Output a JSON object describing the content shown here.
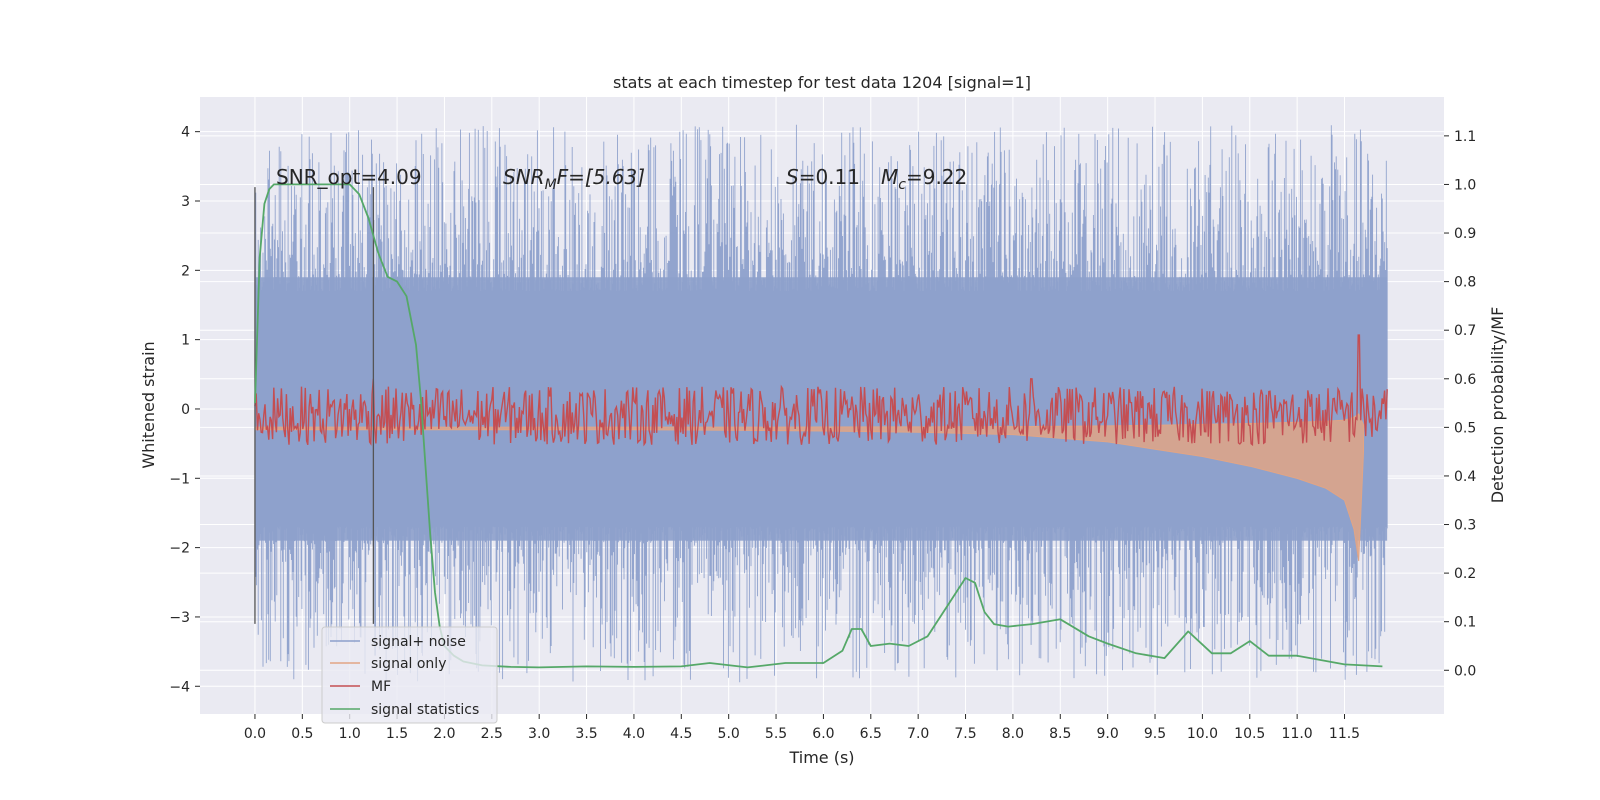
{
  "chart_data": {
    "type": "line",
    "title": "stats at each timestep for test data 1204 [signal=1]",
    "xlabel": "Time (s)",
    "ylabel": "Whitened strain",
    "y2label": "Detection probability/MF",
    "xlim": [
      -0.58,
      12.55
    ],
    "ylim": [
      -4.4,
      4.5
    ],
    "y2lim": [
      -0.09,
      1.18
    ],
    "xticks": [
      0.0,
      0.5,
      1.0,
      1.5,
      2.0,
      2.5,
      3.0,
      3.5,
      4.0,
      4.5,
      5.0,
      5.5,
      6.0,
      6.5,
      7.0,
      7.5,
      8.0,
      8.5,
      9.0,
      9.5,
      10.0,
      10.5,
      11.0,
      11.5
    ],
    "xtick_labels": [
      "0.0",
      "0.5",
      "1.0",
      "1.5",
      "2.0",
      "2.5",
      "3.0",
      "3.5",
      "4.0",
      "4.5",
      "5.0",
      "5.5",
      "6.0",
      "6.5",
      "7.0",
      "7.5",
      "8.0",
      "8.5",
      "9.0",
      "9.5",
      "10.0",
      "10.5",
      "11.0",
      "11.5"
    ],
    "yticks": [
      -4,
      -3,
      -2,
      -1,
      0,
      1,
      2,
      3,
      4
    ],
    "ytick_labels": [
      "−4",
      "−3",
      "−2",
      "−1",
      "0",
      "1",
      "2",
      "3",
      "4"
    ],
    "y2ticks": [
      0.0,
      0.1,
      0.2,
      0.3,
      0.4,
      0.5,
      0.6,
      0.7,
      0.8,
      0.9,
      1.0,
      1.1
    ],
    "y2tick_labels": [
      "0.0",
      "0.1",
      "0.2",
      "0.3",
      "0.4",
      "0.5",
      "0.6",
      "0.7",
      "0.8",
      "0.9",
      "1.0",
      "1.1"
    ],
    "grid": true,
    "legend_position": "lower-left",
    "annotations": {
      "snr_opt": "SNR_opt=4.09",
      "snr_mf_prefix": "SNR",
      "snr_mf_sub": "M",
      "snr_mf_rest": "F=[5.63]",
      "s_var": "S",
      "s_rest": "=0.11",
      "mc_var": "M",
      "mc_sub": "c",
      "mc_rest": "=9.22"
    },
    "vertical_lines_x": [
      0.0,
      1.25
    ],
    "noise_band": {
      "x_start": 0.0,
      "x_end": 11.95,
      "typical_amplitude": 1.9,
      "max_spike_y": 4.1,
      "min_spike_y": -3.95
    },
    "signal_only": {
      "x": [
        0.0,
        1.0,
        2.0,
        3.0,
        4.0,
        5.0,
        6.0,
        7.0,
        8.0,
        9.0,
        9.5,
        10.0,
        10.5,
        11.0,
        11.3,
        11.5,
        11.6,
        11.65,
        11.7
      ],
      "amplitude": [
        0.01,
        0.01,
        0.01,
        0.01,
        0.01,
        0.012,
        0.015,
        0.02,
        0.03,
        0.06,
        0.09,
        0.12,
        0.16,
        0.21,
        0.25,
        0.3,
        0.42,
        0.55,
        0.1
      ]
    },
    "mf": {
      "baseline": 0.53,
      "fluctuation": 0.06,
      "peaks": [
        {
          "x": 1.25,
          "y": 0.6
        },
        {
          "x": 8.2,
          "y": 0.6
        },
        {
          "x": 11.65,
          "y": 0.69
        }
      ]
    },
    "series": [
      {
        "name": "signal+ noise",
        "color": "#8da0cb"
      },
      {
        "name": "signal only",
        "color": "#e1a585"
      },
      {
        "name": "MF",
        "color": "#c44e52"
      },
      {
        "name": "signal statistics",
        "color": "#55a868",
        "x": [
          0.0,
          0.05,
          0.1,
          0.15,
          0.2,
          0.3,
          0.5,
          0.8,
          1.0,
          1.1,
          1.2,
          1.3,
          1.4,
          1.5,
          1.6,
          1.7,
          1.75,
          1.8,
          1.85,
          1.9,
          1.95,
          2.0,
          2.1,
          2.2,
          2.4,
          2.7,
          3.0,
          3.5,
          4.0,
          4.5,
          4.8,
          5.2,
          5.6,
          6.0,
          6.2,
          6.3,
          6.4,
          6.5,
          6.7,
          6.9,
          7.1,
          7.3,
          7.5,
          7.6,
          7.7,
          7.8,
          7.95,
          8.2,
          8.5,
          8.8,
          9.0,
          9.3,
          9.6,
          9.85,
          10.1,
          10.3,
          10.5,
          10.7,
          11.0,
          11.5,
          11.9
        ],
        "y": [
          0.55,
          0.85,
          0.96,
          0.99,
          1.0,
          1.0,
          1.0,
          1.0,
          1.0,
          0.98,
          0.93,
          0.86,
          0.81,
          0.8,
          0.77,
          0.67,
          0.56,
          0.42,
          0.28,
          0.16,
          0.09,
          0.05,
          0.03,
          0.018,
          0.01,
          0.007,
          0.006,
          0.008,
          0.007,
          0.008,
          0.015,
          0.006,
          0.015,
          0.015,
          0.04,
          0.085,
          0.085,
          0.05,
          0.055,
          0.05,
          0.07,
          0.13,
          0.19,
          0.18,
          0.12,
          0.095,
          0.09,
          0.095,
          0.105,
          0.07,
          0.055,
          0.035,
          0.025,
          0.08,
          0.035,
          0.035,
          0.06,
          0.03,
          0.03,
          0.012,
          0.008
        ]
      }
    ]
  }
}
